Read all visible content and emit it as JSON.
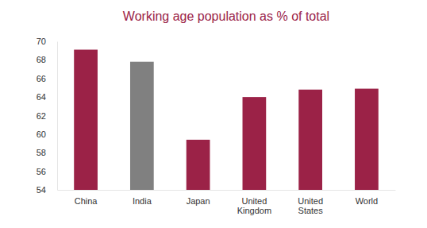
{
  "chart_data": {
    "type": "bar",
    "title": "Working age population as % of total",
    "categories": [
      "China",
      "India",
      "Japan",
      "United Kingdom",
      "United States",
      "World"
    ],
    "values": [
      69.1,
      67.8,
      59.4,
      64.0,
      64.8,
      64.9
    ],
    "colors": [
      "#9b2247",
      "#808080",
      "#9b2247",
      "#9b2247",
      "#9b2247",
      "#9b2247"
    ],
    "ylim": [
      54,
      70
    ],
    "yticks": [
      54,
      56,
      58,
      60,
      62,
      64,
      66,
      68,
      70
    ],
    "grid": false
  }
}
